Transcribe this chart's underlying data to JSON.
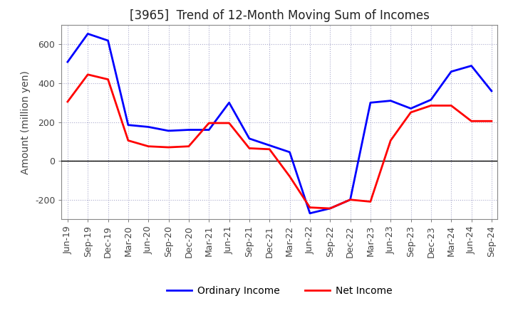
{
  "title": "[3965]  Trend of 12-Month Moving Sum of Incomes",
  "ylabel": "Amount (million yen)",
  "x_labels": [
    "Jun-19",
    "Sep-19",
    "Dec-19",
    "Mar-20",
    "Jun-20",
    "Sep-20",
    "Dec-20",
    "Mar-21",
    "Jun-21",
    "Sep-21",
    "Dec-21",
    "Mar-22",
    "Jun-22",
    "Sep-22",
    "Dec-22",
    "Mar-23",
    "Jun-23",
    "Sep-23",
    "Dec-23",
    "Mar-24",
    "Jun-24",
    "Sep-24"
  ],
  "ordinary_income": [
    510,
    655,
    620,
    185,
    175,
    155,
    160,
    160,
    300,
    115,
    80,
    45,
    -270,
    -245,
    -200,
    300,
    310,
    270,
    315,
    460,
    490,
    360
  ],
  "net_income": [
    305,
    445,
    420,
    105,
    75,
    70,
    75,
    195,
    195,
    65,
    60,
    -80,
    -240,
    -245,
    -200,
    -210,
    105,
    250,
    285,
    285,
    205,
    205
  ],
  "ordinary_color": "#0000ff",
  "net_color": "#ff0000",
  "ylim_min": -300,
  "ylim_max": 700,
  "yticks": [
    -200,
    0,
    200,
    400,
    600
  ],
  "background_color": "#ffffff",
  "plot_bg_color": "#ffffff",
  "grid_color": "#aaaacc",
  "title_fontsize": 12,
  "axis_label_fontsize": 10,
  "tick_fontsize": 9,
  "legend_fontsize": 10
}
